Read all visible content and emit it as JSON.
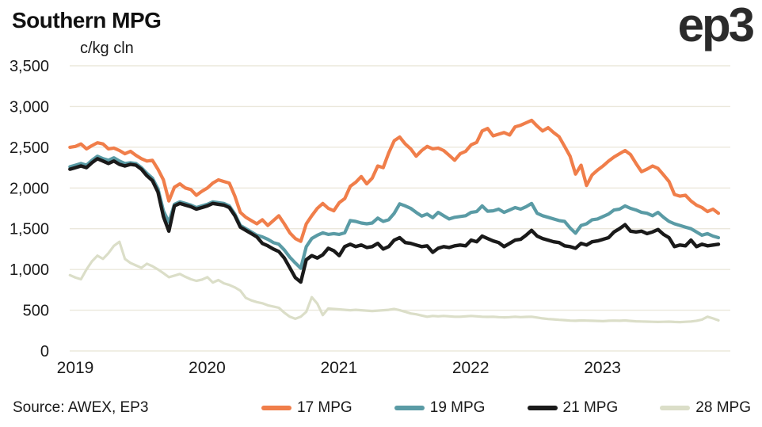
{
  "header": {
    "title": "Southern MPG",
    "logo": "ep3"
  },
  "footer": {
    "source": "Source: AWEX, EP3",
    "legend": [
      {
        "label": "17 MPG",
        "color": "#F07E4A"
      },
      {
        "label": "19 MPG",
        "color": "#5A9BA5"
      },
      {
        "label": "21 MPG",
        "color": "#1A1A1A"
      },
      {
        "label": "28 MPG",
        "color": "#DBDEC8"
      }
    ]
  },
  "chart_data": {
    "type": "line",
    "title": "Southern MPG",
    "unit_label": "c/kg cln",
    "xlabel": "",
    "ylabel": "c/kg cln",
    "ylim": [
      0,
      3500
    ],
    "grid": true,
    "grid_color": "#EBE8DC",
    "legend_position": "bottom",
    "y_ticks": [
      {
        "value": 0,
        "label": "0"
      },
      {
        "value": 500,
        "label": "500"
      },
      {
        "value": 1000,
        "label": "1,000"
      },
      {
        "value": 1500,
        "label": "1,500"
      },
      {
        "value": 2000,
        "label": "2,000"
      },
      {
        "value": 2500,
        "label": "2,500"
      },
      {
        "value": 3000,
        "label": "3,000"
      },
      {
        "value": 3500,
        "label": "3,500"
      }
    ],
    "x_ticks": [
      {
        "value": 0,
        "label": "2019"
      },
      {
        "value": 1,
        "label": "2020"
      },
      {
        "value": 2,
        "label": "2021"
      },
      {
        "value": 3,
        "label": "2022"
      },
      {
        "value": 4,
        "label": "2023"
      }
    ],
    "t_start": -0.04,
    "t_end": 4.88,
    "x_unit": "years-since-2019",
    "sampling": "approx-half-month",
    "series": [
      {
        "name": "17 MPG",
        "color": "#F07E4A",
        "width": 4.2,
        "values": [
          2500,
          2510,
          2540,
          2480,
          2520,
          2555,
          2540,
          2480,
          2490,
          2460,
          2420,
          2450,
          2400,
          2360,
          2330,
          2340,
          2230,
          2100,
          1840,
          2010,
          2050,
          2000,
          1980,
          1910,
          1960,
          2000,
          2060,
          2100,
          2080,
          2060,
          1900,
          1700,
          1640,
          1600,
          1560,
          1610,
          1540,
          1600,
          1660,
          1560,
          1450,
          1380,
          1345,
          1560,
          1660,
          1750,
          1810,
          1750,
          1720,
          1820,
          1870,
          2020,
          2070,
          2140,
          2050,
          2120,
          2270,
          2250,
          2430,
          2580,
          2625,
          2540,
          2480,
          2390,
          2460,
          2510,
          2480,
          2490,
          2460,
          2400,
          2340,
          2420,
          2450,
          2530,
          2560,
          2700,
          2730,
          2640,
          2660,
          2680,
          2650,
          2750,
          2770,
          2800,
          2830,
          2760,
          2700,
          2740,
          2680,
          2630,
          2510,
          2390,
          2170,
          2280,
          2030,
          2160,
          2220,
          2270,
          2330,
          2380,
          2420,
          2460,
          2410,
          2300,
          2200,
          2230,
          2270,
          2240,
          2160,
          2080,
          1920,
          1900,
          1910,
          1840,
          1790,
          1760,
          1710,
          1740,
          1690
        ]
      },
      {
        "name": "19 MPG",
        "color": "#5A9BA5",
        "width": 4.2,
        "values": [
          2260,
          2280,
          2300,
          2280,
          2340,
          2390,
          2360,
          2340,
          2370,
          2330,
          2300,
          2310,
          2300,
          2250,
          2180,
          2120,
          1990,
          1720,
          1580,
          1800,
          1830,
          1810,
          1790,
          1760,
          1780,
          1800,
          1830,
          1820,
          1810,
          1780,
          1680,
          1540,
          1500,
          1460,
          1420,
          1400,
          1370,
          1330,
          1310,
          1240,
          1150,
          1080,
          1015,
          1280,
          1380,
          1420,
          1450,
          1430,
          1440,
          1430,
          1450,
          1600,
          1590,
          1570,
          1560,
          1570,
          1630,
          1590,
          1610,
          1690,
          1805,
          1780,
          1750,
          1700,
          1655,
          1680,
          1635,
          1700,
          1660,
          1620,
          1640,
          1650,
          1660,
          1700,
          1710,
          1780,
          1715,
          1720,
          1740,
          1700,
          1730,
          1760,
          1740,
          1770,
          1810,
          1690,
          1660,
          1640,
          1620,
          1600,
          1590,
          1510,
          1445,
          1540,
          1560,
          1610,
          1620,
          1650,
          1680,
          1730,
          1740,
          1780,
          1750,
          1730,
          1700,
          1690,
          1660,
          1700,
          1640,
          1590,
          1560,
          1540,
          1520,
          1500,
          1460,
          1420,
          1440,
          1410,
          1390
        ]
      },
      {
        "name": "21 MPG",
        "color": "#1A1A1A",
        "width": 4.4,
        "values": [
          2230,
          2250,
          2270,
          2250,
          2310,
          2360,
          2330,
          2300,
          2330,
          2290,
          2270,
          2290,
          2280,
          2230,
          2150,
          2090,
          1950,
          1650,
          1470,
          1780,
          1810,
          1790,
          1770,
          1740,
          1760,
          1780,
          1810,
          1800,
          1790,
          1760,
          1660,
          1520,
          1480,
          1440,
          1400,
          1320,
          1290,
          1250,
          1220,
          1140,
          1020,
          900,
          845,
          1120,
          1170,
          1140,
          1180,
          1260,
          1230,
          1170,
          1280,
          1310,
          1280,
          1300,
          1270,
          1280,
          1320,
          1250,
          1280,
          1360,
          1390,
          1330,
          1320,
          1300,
          1280,
          1290,
          1210,
          1260,
          1280,
          1270,
          1290,
          1300,
          1290,
          1360,
          1340,
          1410,
          1380,
          1350,
          1330,
          1280,
          1320,
          1360,
          1370,
          1420,
          1480,
          1410,
          1380,
          1360,
          1340,
          1330,
          1290,
          1280,
          1260,
          1320,
          1300,
          1340,
          1350,
          1370,
          1390,
          1460,
          1500,
          1550,
          1470,
          1460,
          1470,
          1440,
          1460,
          1490,
          1430,
          1390,
          1280,
          1300,
          1290,
          1360,
          1280,
          1310,
          1290,
          1300,
          1310
        ]
      },
      {
        "name": "28 MPG",
        "color": "#DBDEC8",
        "width": 3.2,
        "values": [
          930,
          900,
          880,
          1000,
          1100,
          1170,
          1130,
          1200,
          1290,
          1340,
          1130,
          1080,
          1050,
          1020,
          1070,
          1040,
          1000,
          955,
          905,
          925,
          945,
          910,
          880,
          860,
          875,
          905,
          840,
          870,
          830,
          810,
          780,
          740,
          650,
          620,
          600,
          585,
          560,
          545,
          530,
          470,
          420,
          395,
          420,
          480,
          660,
          580,
          440,
          520,
          515,
          510,
          505,
          500,
          505,
          500,
          495,
          490,
          495,
          500,
          505,
          515,
          500,
          480,
          460,
          450,
          435,
          420,
          430,
          425,
          430,
          425,
          420,
          420,
          425,
          430,
          425,
          420,
          418,
          420,
          415,
          412,
          415,
          420,
          415,
          418,
          420,
          410,
          400,
          392,
          388,
          382,
          378,
          372,
          370,
          374,
          372,
          370,
          368,
          366,
          370,
          372,
          370,
          374,
          368,
          364,
          362,
          360,
          358,
          356,
          358,
          360,
          356,
          354,
          358,
          362,
          370,
          385,
          420,
          400,
          375
        ]
      }
    ]
  }
}
